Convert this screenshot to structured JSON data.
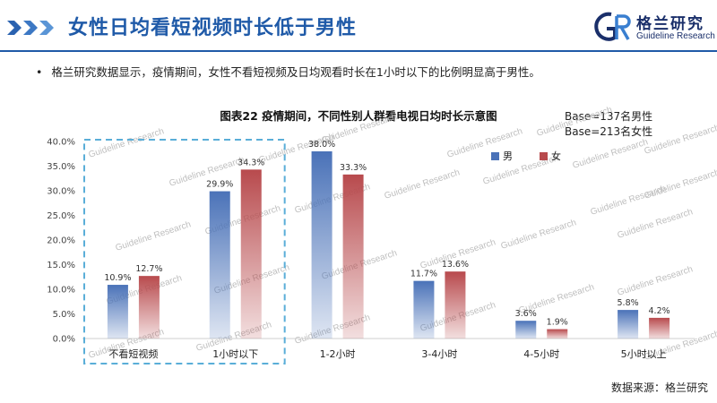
{
  "header": {
    "title": "女性日均看短视频时长低于男性",
    "logo_cn": "格兰研究",
    "logo_en": "Guideline Research"
  },
  "bullet": "格兰研究数据显示，疫情期间，女性不看短视频及日均观看时长在1小时以下的比例明显高于男性。",
  "base_note": [
    "Base=137名男性",
    "Base=213名女性"
  ],
  "source": "数据来源：格兰研究",
  "watermark": "Guideline Research",
  "colors": {
    "title_blue": "#1f5aa8",
    "male": "#4a72b8",
    "female": "#b84a4d",
    "highlight_box": "#5aaed8"
  },
  "icons": {
    "header_mark": "triple-chevron-icon",
    "logo": "gr-logo-icon"
  },
  "chart_data": {
    "type": "bar",
    "title": "图表22  疫情期间，不同性别人群看电视日均时长示意图",
    "categories": [
      "不看短视频",
      "1小时以下",
      "1-2小时",
      "3-4小时",
      "4-5小时",
      "5小时以上"
    ],
    "series": [
      {
        "name": "男",
        "values": [
          10.9,
          29.9,
          38.0,
          11.7,
          3.6,
          5.8
        ]
      },
      {
        "name": "女",
        "values": [
          12.7,
          34.3,
          33.3,
          13.6,
          1.9,
          4.2
        ]
      }
    ],
    "value_labels": [
      [
        "10.9%",
        "29.9%",
        "38.0%",
        "11.7%",
        "3.6%",
        "5.8%"
      ],
      [
        "12.7%",
        "34.3%",
        "33.3%",
        "13.6%",
        "1.9%",
        "4.2%"
      ]
    ],
    "ylim": [
      0,
      40
    ],
    "yticks": [
      0,
      5,
      10,
      15,
      20,
      25,
      30,
      35,
      40
    ],
    "ytick_labels": [
      "0.0%",
      "5.0%",
      "10.0%",
      "15.0%",
      "20.0%",
      "25.0%",
      "30.0%",
      "35.0%",
      "40.0%"
    ],
    "legend_position": "top-right",
    "grid": false,
    "highlight_categories": [
      "不看短视频",
      "1小时以下"
    ]
  }
}
